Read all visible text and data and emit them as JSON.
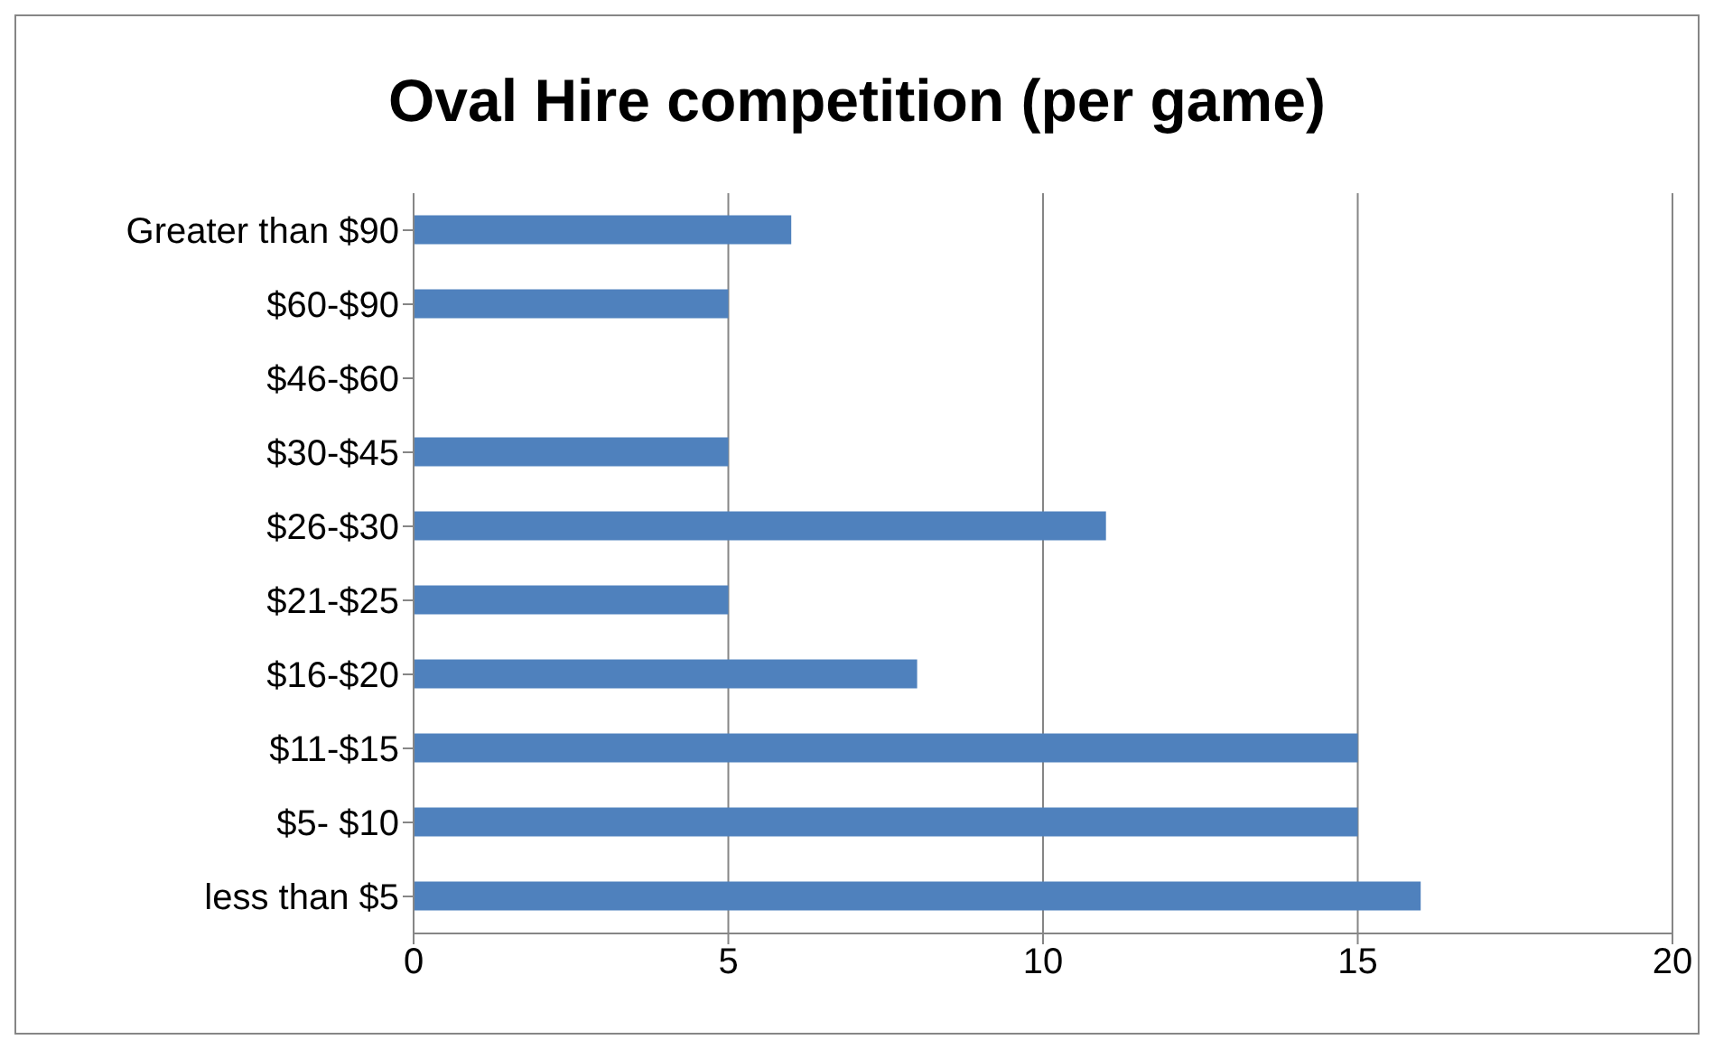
{
  "chart_data": {
    "type": "bar",
    "orientation": "horizontal",
    "title": "Oval Hire competition (per game)",
    "categories": [
      "Greater than $90",
      "$60-$90",
      "$46-$60",
      "$30-$45",
      "$26-$30",
      "$21-$25",
      "$16-$20",
      "$11-$15",
      "$5- $10",
      "less than $5"
    ],
    "values": [
      6,
      5,
      0,
      5,
      11,
      5,
      8,
      15,
      15,
      16
    ],
    "color": "#4f81bd",
    "xlim": [
      0,
      20
    ],
    "xticks": [
      0,
      5,
      10,
      15,
      20
    ],
    "grid": "x"
  }
}
